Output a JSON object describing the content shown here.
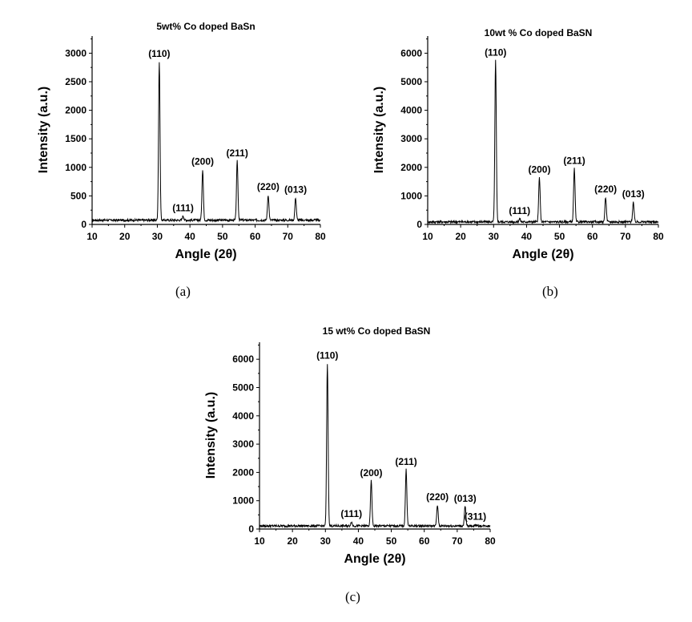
{
  "chart_data": [
    {
      "type": "line",
      "panel": "a",
      "title": "5wt% Co doped BaSn",
      "xlabel": "Angle (2θ)",
      "ylabel": "Intensity (a.u.)",
      "xlim": [
        10,
        80
      ],
      "ylim": [
        0,
        3300
      ],
      "xticks": [
        10,
        20,
        30,
        40,
        50,
        60,
        70,
        80
      ],
      "yticks": [
        0,
        500,
        1000,
        1500,
        2000,
        2500,
        3000
      ],
      "baseline": 75,
      "peaks": [
        {
          "x": 30.6,
          "y": 2850,
          "label": "(110)"
        },
        {
          "x": 37.9,
          "y": 150,
          "label": "(111)"
        },
        {
          "x": 43.9,
          "y": 960,
          "label": "(200)"
        },
        {
          "x": 54.5,
          "y": 1110,
          "label": "(211)"
        },
        {
          "x": 64.0,
          "y": 520,
          "label": "(220)"
        },
        {
          "x": 72.4,
          "y": 470,
          "label": "(013)"
        }
      ],
      "sublabel": "(a)"
    },
    {
      "type": "line",
      "panel": "b",
      "title": "10wt % Co doped BaSN",
      "xlabel": "Angle (2θ)",
      "ylabel": "Intensity (a.u.)",
      "xlim": [
        10,
        80
      ],
      "ylim": [
        0,
        6600
      ],
      "xticks": [
        10,
        20,
        30,
        40,
        50,
        60,
        70,
        80
      ],
      "yticks": [
        0,
        1000,
        2000,
        3000,
        4000,
        5000,
        6000
      ],
      "baseline": 90,
      "peaks": [
        {
          "x": 30.6,
          "y": 5750,
          "label": "(110)"
        },
        {
          "x": 37.9,
          "y": 200,
          "label": "(111)"
        },
        {
          "x": 43.9,
          "y": 1650,
          "label": "(200)"
        },
        {
          "x": 54.5,
          "y": 1950,
          "label": "(211)"
        },
        {
          "x": 64.0,
          "y": 950,
          "label": "(220)"
        },
        {
          "x": 72.4,
          "y": 780,
          "label": "(013)"
        }
      ],
      "sublabel": "(b)"
    },
    {
      "type": "line",
      "panel": "c",
      "title": "15 wt% Co doped BaSN",
      "xlabel": "Angle (2θ)",
      "ylabel": "Intensity (a.u.)",
      "xlim": [
        10,
        80
      ],
      "ylim": [
        0,
        6600
      ],
      "xticks": [
        10,
        20,
        30,
        40,
        50,
        60,
        70,
        80
      ],
      "yticks": [
        0,
        1000,
        2000,
        3000,
        4000,
        5000,
        6000
      ],
      "baseline": 110,
      "peaks": [
        {
          "x": 30.6,
          "y": 5850,
          "label": "(110)"
        },
        {
          "x": 37.9,
          "y": 250,
          "label": "(111)"
        },
        {
          "x": 43.9,
          "y": 1700,
          "label": "(200)"
        },
        {
          "x": 54.5,
          "y": 2100,
          "label": "(211)"
        },
        {
          "x": 64.0,
          "y": 850,
          "label": "(220)"
        },
        {
          "x": 72.4,
          "y": 800,
          "label": "(013)"
        },
        {
          "x": 75.5,
          "y": 150,
          "label": "(311)"
        }
      ],
      "sublabel": "(c)"
    }
  ]
}
